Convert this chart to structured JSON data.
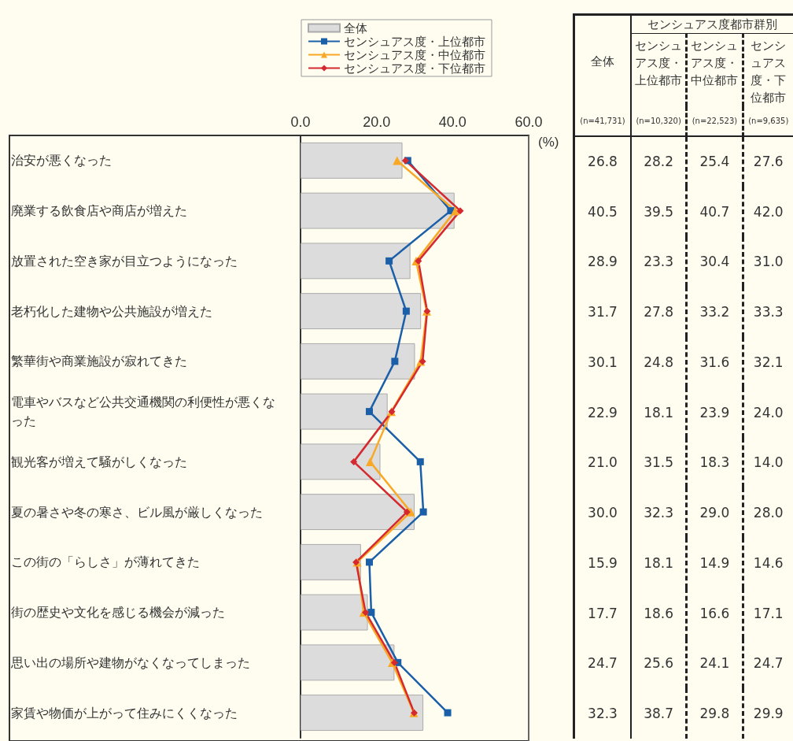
{
  "chart_data": {
    "type": "bar",
    "orientation": "horizontal",
    "xlabel": "(%)",
    "categories": [
      "治安が悪くなった",
      "廃業する飲食店や商店が増えた",
      "放置された空き家が目立つようになった",
      "老朽化した建物や公共施設が増えた",
      "繁華街や商業施設が寂れてきた",
      "電車やバスなど公共交通機関の利便性が悪くなった",
      "観光客が増えて騒がしくなった",
      "夏の暑さや冬の寒さ、ビル風が厳しくなった",
      "この街の「らしさ」が薄れてきた",
      "街の歴史や文化を感じる機会が減った",
      "思い出の場所や建物がなくなってしまった",
      "家賃や物価が上がって住みにくくなった"
    ],
    "series": [
      {
        "name": "全体",
        "color": "#dcdcdc",
        "values": [
          26.8,
          40.5,
          28.9,
          31.7,
          30.1,
          22.9,
          21.0,
          30.0,
          15.9,
          17.7,
          24.7,
          32.3
        ],
        "value_labels": [
          "26.8",
          "40.5",
          "28.9",
          "31.7",
          "30.1",
          "22.9",
          "21.0",
          "30.0",
          "15.9",
          "17.7",
          "24.7",
          "32.3"
        ]
      },
      {
        "name": "センシュアス度・上位都市",
        "type": "line",
        "marker": "square",
        "color": "#1a5fa8",
        "values": [
          28.2,
          39.5,
          23.3,
          27.8,
          24.8,
          18.1,
          31.5,
          32.3,
          18.1,
          18.6,
          25.6,
          38.7
        ],
        "value_labels": [
          "28.2",
          "39.5",
          "23.3",
          "27.8",
          "24.8",
          "18.1",
          "31.5",
          "32.3",
          "18.1",
          "18.6",
          "25.6",
          "38.7"
        ]
      },
      {
        "name": "センシュアス度・中位都市",
        "type": "line",
        "marker": "triangle",
        "color": "#f9a825",
        "values": [
          25.4,
          40.7,
          30.4,
          33.2,
          31.6,
          23.9,
          18.3,
          29.0,
          14.9,
          16.6,
          24.1,
          29.8
        ],
        "value_labels": [
          "25.4",
          "40.7",
          "30.4",
          "33.2",
          "31.6",
          "23.9",
          "18.3",
          "29.0",
          "14.9",
          "16.6",
          "24.1",
          "29.8"
        ]
      },
      {
        "name": "センシュアス度・下位都市",
        "type": "line",
        "marker": "diamond",
        "color": "#d42a2f",
        "values": [
          27.6,
          42.0,
          31.0,
          33.3,
          32.1,
          24.0,
          14.0,
          28.0,
          14.6,
          17.1,
          24.7,
          29.9
        ],
        "value_labels": [
          "27.6",
          "42.0",
          "31.0",
          "33.3",
          "32.1",
          "24.0",
          "14.0",
          "28.0",
          "14.6",
          "17.1",
          "24.7",
          "29.9"
        ]
      }
    ],
    "xlim": [
      0,
      60
    ],
    "xticks": [
      {
        "value": 0,
        "label": "0.0"
      },
      {
        "value": 20,
        "label": "20.0"
      },
      {
        "value": 40,
        "label": "40.0"
      },
      {
        "value": 60,
        "label": "60.0"
      }
    ],
    "grid": false,
    "legend": "top",
    "annotations": [
      "センシュアス度都市群別",
      "(n=41,731)",
      "(n=10,320)",
      "(n=22,523)",
      "(n=9,635)"
    ]
  }
}
